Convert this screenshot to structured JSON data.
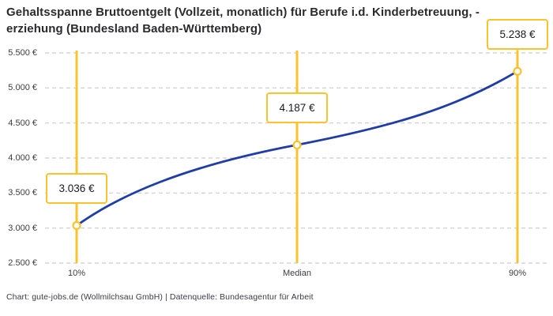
{
  "header": {
    "title": "Gehaltsspanne Bruttoentgelt (Vollzeit, monatlich) für Berufe i.d. Kinderbetreuung, -erziehung (Bundesland Baden-Württemberg)"
  },
  "footer": {
    "credit": "Chart: gute-jobs.de (Wollmilchsau GmbH) | Datenquelle: Bundesagentur für Arbeit"
  },
  "chart_data": {
    "type": "line",
    "title": "Gehaltsspanne Bruttoentgelt (Vollzeit, monatlich) für Berufe i.d. Kinderbetreuung, -erziehung (Bundesland Baden-Württemberg)",
    "categories": [
      "10%",
      "Median",
      "90%"
    ],
    "values": [
      3036,
      4187,
      5238
    ],
    "point_labels": [
      "3.036 €",
      "4.187 €",
      "5.238 €"
    ],
    "xlabel": "",
    "ylabel": "",
    "ylim": [
      2500,
      5500
    ],
    "yticks": [
      {
        "value": 2500,
        "label": "2.500 €"
      },
      {
        "value": 3000,
        "label": "3.000 €"
      },
      {
        "value": 3500,
        "label": "3.500 €"
      },
      {
        "value": 4000,
        "label": "4.000 €"
      },
      {
        "value": 4500,
        "label": "4.500 €"
      },
      {
        "value": 5000,
        "label": "5.000 €"
      },
      {
        "value": 5500,
        "label": "5.500 €"
      }
    ],
    "grid": "horizontal-dashed",
    "legend": "none",
    "colors": {
      "line": "#1f3da6",
      "marker": "#fac32c",
      "grid": "#cccccc",
      "label_border": "#fac32c",
      "text": "#3c3c44"
    }
  }
}
